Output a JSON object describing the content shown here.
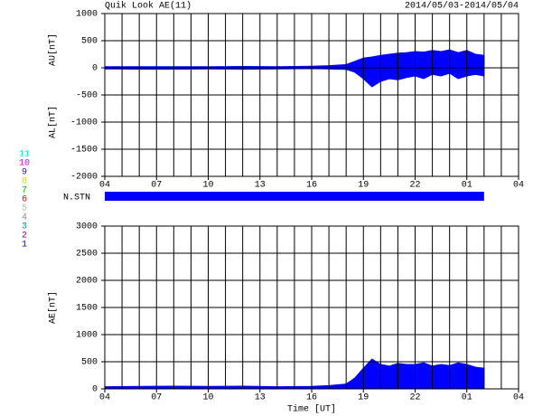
{
  "chart_data": [
    {
      "type": "area",
      "title": "Quik Look AE(11)",
      "subtitle": "2014/05/03-2014/05/04",
      "x": [
        0,
        2,
        4,
        6,
        8,
        10,
        12,
        13,
        14,
        14.5,
        15,
        15.5,
        16,
        16.5,
        17,
        17.5,
        18,
        18.5,
        19,
        19.5,
        20,
        20.5,
        21,
        21.5,
        22
      ],
      "series": [
        {
          "name": "AU[nT]",
          "color": "#0000ff",
          "values": [
            20,
            20,
            20,
            20,
            25,
            20,
            30,
            40,
            60,
            120,
            180,
            200,
            230,
            250,
            270,
            280,
            300,
            290,
            320,
            300,
            330,
            280,
            320,
            250,
            230
          ]
        },
        {
          "name": "AL[nT]",
          "color": "#0000ff",
          "values": [
            -20,
            -25,
            -25,
            -20,
            -25,
            -20,
            -15,
            -20,
            -30,
            -80,
            -200,
            -350,
            -250,
            -200,
            -220,
            -180,
            -150,
            -200,
            -120,
            -150,
            -100,
            -200,
            -150,
            -120,
            -150
          ]
        }
      ],
      "xlim": [
        0,
        24
      ],
      "xticks": [
        {
          "value": 0,
          "label": "04"
        },
        {
          "value": 3,
          "label": "07"
        },
        {
          "value": 6,
          "label": "10"
        },
        {
          "value": 9,
          "label": "13"
        },
        {
          "value": 12,
          "label": "16"
        },
        {
          "value": 15,
          "label": "19"
        },
        {
          "value": 18,
          "label": "22"
        },
        {
          "value": 21,
          "label": "01"
        },
        {
          "value": 24,
          "label": "04"
        }
      ],
      "x_grid_step": 1,
      "ylim": [
        -2000,
        1000
      ],
      "yticks": [
        -2000,
        -1500,
        -1000,
        -500,
        0,
        500,
        1000
      ],
      "station_label": "N.STN",
      "stations": [
        {
          "label": "11",
          "color": "#00dddd"
        },
        {
          "label": "10",
          "color": "#dd00dd"
        },
        {
          "label": "9",
          "color": "#4400cc"
        },
        {
          "label": "8",
          "color": "#dddd00"
        },
        {
          "label": "7",
          "color": "#00bb00"
        },
        {
          "label": "6",
          "color": "#ff0000"
        },
        {
          "label": "5",
          "color": "#bbbbbb"
        },
        {
          "label": "4",
          "color": "#888888"
        },
        {
          "label": "3",
          "color": "#009999"
        },
        {
          "label": "2",
          "color": "#880088"
        },
        {
          "label": "1",
          "color": "#0000ff"
        }
      ]
    },
    {
      "type": "area",
      "xlabel": "Time [UT]",
      "x": [
        0,
        2,
        4,
        6,
        8,
        10,
        12,
        13,
        14,
        14.5,
        15,
        15.5,
        16,
        16.5,
        17,
        17.5,
        18,
        18.5,
        19,
        19.5,
        20,
        20.5,
        21,
        21.5,
        22
      ],
      "series": [
        {
          "name": "AE[nT]",
          "color": "#0000ff",
          "values": [
            40,
            45,
            50,
            45,
            50,
            40,
            45,
            60,
            90,
            200,
            380,
            550,
            450,
            420,
            470,
            450,
            450,
            480,
            420,
            450,
            430,
            480,
            450,
            400,
            380
          ]
        }
      ],
      "xlim": [
        0,
        24
      ],
      "xticks": [
        {
          "value": 0,
          "label": "04"
        },
        {
          "value": 3,
          "label": "07"
        },
        {
          "value": 6,
          "label": "10"
        },
        {
          "value": 9,
          "label": "13"
        },
        {
          "value": 12,
          "label": "16"
        },
        {
          "value": 15,
          "label": "19"
        },
        {
          "value": 18,
          "label": "22"
        },
        {
          "value": 21,
          "label": "01"
        },
        {
          "value": 24,
          "label": "04"
        }
      ],
      "x_grid_step": 1,
      "ylim": [
        0,
        3000
      ],
      "yticks": [
        0,
        500,
        1000,
        1500,
        2000,
        2500,
        3000
      ]
    }
  ]
}
